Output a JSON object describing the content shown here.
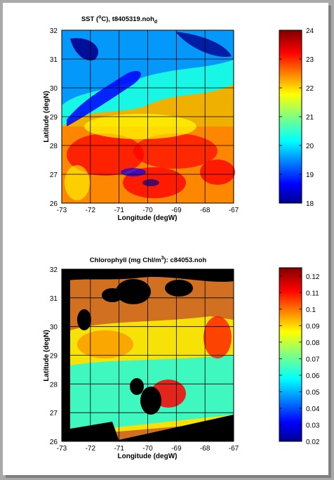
{
  "panels": [
    {
      "id": "sst",
      "title_prefix": "SST (",
      "title_sup": "o",
      "title_mid": "C), t8405319.noh",
      "title_sub": "d",
      "xlabel": "Longitude (degW)",
      "ylabel": "Latitude (degN)",
      "x_ticks": [
        "-73",
        "-72",
        "-71",
        "-70",
        "-69",
        "-68",
        "-67"
      ],
      "y_ticks": [
        "26",
        "27",
        "28",
        "29",
        "30",
        "31",
        "32"
      ],
      "colorbar_ticks": [
        "18",
        "19",
        "20",
        "21",
        "22",
        "23",
        "24"
      ],
      "colorbar_range": [
        18,
        24
      ],
      "land_color": "#000000"
    },
    {
      "id": "chl",
      "title_prefix": "Chlorophyll (mg Chl/m",
      "title_sup": "3",
      "title_mid": "): c84053.noh",
      "title_sub": "",
      "xlabel": "Longitude (degW)",
      "ylabel": "Latitude (degN)",
      "x_ticks": [
        "-73",
        "-72",
        "-71",
        "-70",
        "-69",
        "-68",
        "-67"
      ],
      "y_ticks": [
        "26",
        "27",
        "28",
        "29",
        "30",
        "31",
        "32"
      ],
      "colorbar_ticks": [
        "0.02",
        "0.03",
        "0.04",
        "0.05",
        "0.06",
        "0.07",
        "0.08",
        "0.09",
        "0.1",
        "0.11",
        "0.12"
      ],
      "colorbar_range": [
        0.02,
        0.125
      ],
      "land_color": "#000000"
    }
  ],
  "colormap": [
    "#00008f",
    "#0000ff",
    "#0080ff",
    "#00ffff",
    "#80ff80",
    "#ffff00",
    "#ff8000",
    "#ff0000",
    "#800000"
  ]
}
